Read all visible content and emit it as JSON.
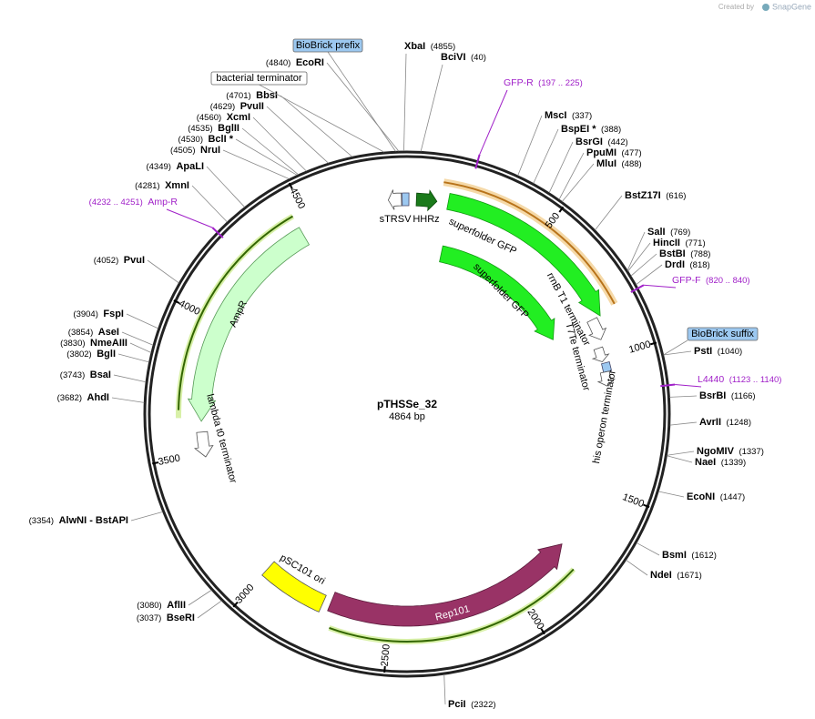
{
  "watermark": {
    "prefix": "Created by",
    "brand": "SnapGene"
  },
  "plasmid": {
    "name": "pTHSSe_32",
    "length": "4864 bp"
  },
  "enzymes": [
    {
      "name": "EcoRI",
      "pos": "(4840)"
    },
    {
      "name": "BbsI",
      "pos": "(4701)"
    },
    {
      "name": "PvuII",
      "pos": "(4629)"
    },
    {
      "name": "XcmI",
      "pos": "(4560)"
    },
    {
      "name": "BglII",
      "pos": "(4535)"
    },
    {
      "name": "BclI *",
      "pos": "(4530)"
    },
    {
      "name": "NruI",
      "pos": "(4505)"
    },
    {
      "name": "ApaLI",
      "pos": "(4349)"
    },
    {
      "name": "XmnI",
      "pos": "(4281)"
    },
    {
      "name": "PvuI",
      "pos": "(4052)"
    },
    {
      "name": "FspI",
      "pos": "(3904)"
    },
    {
      "name": "AseI",
      "pos": "(3854)"
    },
    {
      "name": "NmeAIII",
      "pos": "(3830)"
    },
    {
      "name": "BglI",
      "pos": "(3802)"
    },
    {
      "name": "BsaI",
      "pos": "(3743)"
    },
    {
      "name": "AhdI",
      "pos": "(3682)"
    },
    {
      "name": "AlwNI  - BstAPI",
      "pos": "(3354)"
    },
    {
      "name": "AflII",
      "pos": "(3080)"
    },
    {
      "name": "BseRI",
      "pos": "(3037)"
    },
    {
      "name": "XbaI",
      "pos": "(4855)"
    },
    {
      "name": "BciVI",
      "pos": "(40)"
    },
    {
      "name": "MscI",
      "pos": "(337)"
    },
    {
      "name": "BspEI *",
      "pos": "(388)"
    },
    {
      "name": "BsrGI",
      "pos": "(442)"
    },
    {
      "name": "PpuMI",
      "pos": "(477)"
    },
    {
      "name": "MluI",
      "pos": "(488)"
    },
    {
      "name": "BstZ17I",
      "pos": "(616)"
    },
    {
      "name": "SalI",
      "pos": "(769)"
    },
    {
      "name": "HincII",
      "pos": "(771)"
    },
    {
      "name": "BstBI",
      "pos": "(788)"
    },
    {
      "name": "DrdI",
      "pos": "(818)"
    },
    {
      "name": "PstI",
      "pos": "(1040)"
    },
    {
      "name": "BsrBI",
      "pos": "(1166)"
    },
    {
      "name": "AvrII",
      "pos": "(1248)"
    },
    {
      "name": "NgoMIV",
      "pos": "(1337)"
    },
    {
      "name": "NaeI",
      "pos": "(1339)"
    },
    {
      "name": "EcoNI",
      "pos": "(1447)"
    },
    {
      "name": "BsmI",
      "pos": "(1612)"
    },
    {
      "name": "NdeI",
      "pos": "(1671)"
    },
    {
      "name": "PciI",
      "pos": "(2322)"
    }
  ],
  "primers": [
    {
      "name": "GFP-R",
      "range": "(197 .. 225)"
    },
    {
      "name": "GFP-F",
      "range": "(820 .. 840)"
    },
    {
      "name": "L4440",
      "range": "(1123 .. 1140)"
    },
    {
      "name": "Amp-R",
      "range": "(4232 .. 4251)"
    }
  ],
  "boxed_features": [
    "BioBrick prefix",
    "bacterial terminator",
    "BioBrick suffix"
  ],
  "features": [
    "sTRSV",
    "HHRz",
    "superfolder GFP",
    "superfolder GFP",
    "rrnB T1 terminator",
    "T7Te terminator",
    "his operon terminator",
    "AmpR",
    "lambda t0 terminator",
    "pSC101 ori",
    "Rep101"
  ],
  "ticks": [
    "500",
    "1000",
    "1500",
    "2000",
    "2500",
    "3000",
    "3500",
    "4000",
    "4500"
  ]
}
